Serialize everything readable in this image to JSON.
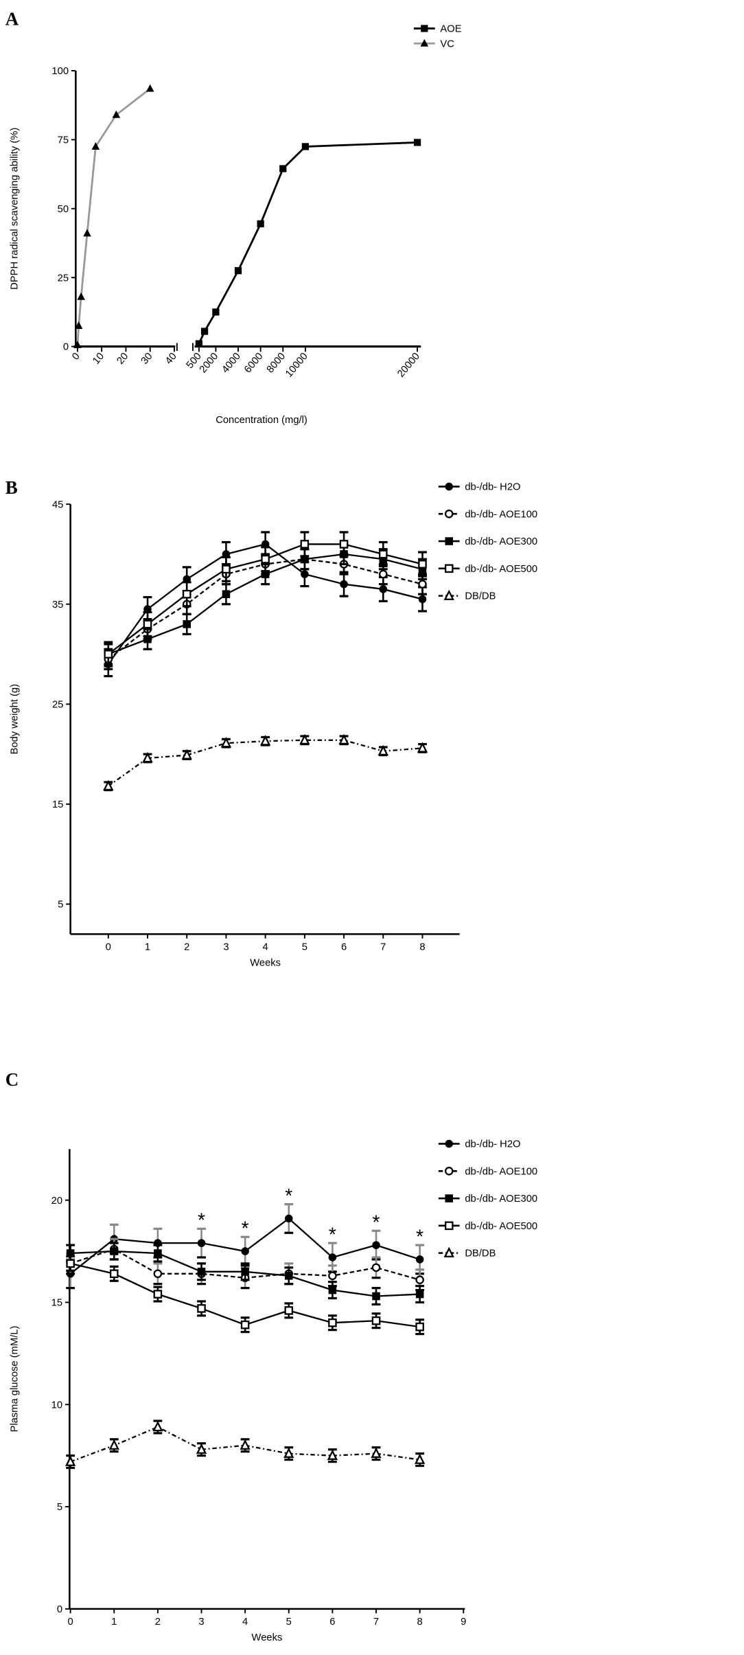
{
  "chart_data": [
    {
      "panel_label": "A",
      "type": "line",
      "xlabel": "Concentration (mg/l)",
      "ylabel": "DPPH radical scavenging ability (%)",
      "ylim": [
        0,
        100
      ],
      "yticks": [
        0,
        25,
        50,
        75,
        100
      ],
      "x_axis_broken": true,
      "xticks_left": [
        0,
        10,
        20,
        30,
        40
      ],
      "xticks_right": [
        500,
        2000,
        4000,
        6000,
        8000,
        10000,
        20000
      ],
      "legend_position": "top-right",
      "series": [
        {
          "name": "AOE",
          "color": "#000000",
          "marker": "square-filled",
          "segment": "right",
          "x": [
            500,
            1000,
            2000,
            4000,
            6000,
            8000,
            10000,
            20000
          ],
          "y": [
            1,
            5.5,
            12.5,
            27.5,
            44.5,
            64.5,
            72.5,
            74
          ]
        },
        {
          "name": "VC",
          "color": "#999999",
          "marker": "triangle-filled",
          "segment": "left",
          "x": [
            0,
            0.5,
            1.5,
            4,
            7.5,
            16,
            30
          ],
          "y": [
            0.5,
            7.5,
            18,
            41,
            72.5,
            84,
            93.5
          ]
        }
      ]
    },
    {
      "panel_label": "B",
      "type": "line",
      "xlabel": "Weeks",
      "ylabel": "Body weight (g)",
      "ylim": [
        2,
        45
      ],
      "xlim": [
        -1,
        9
      ],
      "yticks": [
        5,
        15,
        25,
        35,
        45
      ],
      "xticks": [
        0,
        1,
        2,
        3,
        4,
        5,
        6,
        7,
        8
      ],
      "legend_position": "top-right",
      "series": [
        {
          "name": "db-/db- H2O",
          "marker": "circle-filled",
          "dash": "solid",
          "x": [
            0,
            1,
            2,
            3,
            4,
            5,
            6,
            7,
            8
          ],
          "y": [
            29,
            34.5,
            37.5,
            40,
            41,
            38,
            37,
            36.5,
            35.5
          ],
          "err": 1.2
        },
        {
          "name": "db-/db- AOE100",
          "marker": "circle-open",
          "dash": "dashed",
          "x": [
            0,
            1,
            2,
            3,
            4,
            5,
            6,
            7,
            8
          ],
          "y": [
            29.5,
            32.5,
            35,
            38,
            39,
            39.5,
            39,
            38,
            37
          ],
          "err": 1.0
        },
        {
          "name": "db-/db- AOE300",
          "marker": "square-filled",
          "dash": "solid",
          "x": [
            0,
            1,
            2,
            3,
            4,
            5,
            6,
            7,
            8
          ],
          "y": [
            30,
            31.5,
            33,
            36,
            38,
            39.5,
            40,
            39.5,
            38.5
          ],
          "err": 1.0
        },
        {
          "name": "db-/db- AOE500",
          "marker": "square-open",
          "dash": "solid",
          "x": [
            0,
            1,
            2,
            3,
            4,
            5,
            6,
            7,
            8
          ],
          "y": [
            30,
            33,
            36,
            38.5,
            39.5,
            41,
            41,
            40,
            39
          ],
          "err": 1.2
        },
        {
          "name": "DB/DB",
          "marker": "triangle-open",
          "dash": "dashdot",
          "x": [
            0,
            1,
            2,
            3,
            4,
            5,
            6,
            7,
            8
          ],
          "y": [
            16.8,
            19.6,
            19.9,
            21.1,
            21.3,
            21.4,
            21.4,
            20.3,
            20.6
          ],
          "err": 0.4
        }
      ]
    },
    {
      "panel_label": "C",
      "type": "line",
      "xlabel": "Weeks",
      "ylabel": "Plasma glucose (mM/L)",
      "ylim": [
        0,
        22.5
      ],
      "xlim": [
        0,
        9
      ],
      "yticks": [
        0,
        5,
        10,
        15,
        20
      ],
      "xticks": [
        0,
        1,
        2,
        3,
        4,
        5,
        6,
        7,
        8,
        9
      ],
      "legend_position": "top-right",
      "significance_marker": "*",
      "significance_weeks": [
        3,
        4,
        5,
        6,
        7,
        8
      ],
      "series": [
        {
          "name": "db-/db- H2O",
          "marker": "circle-filled",
          "dash": "solid",
          "errColor": "#888888",
          "x": [
            0,
            1,
            2,
            3,
            4,
            5,
            6,
            7,
            8
          ],
          "y": [
            16.4,
            18.1,
            17.9,
            17.9,
            17.5,
            19.1,
            17.2,
            17.8,
            17.1
          ],
          "err": 0.7
        },
        {
          "name": "db-/db- AOE100",
          "marker": "circle-open",
          "dash": "dashed",
          "errColor": "#888888",
          "x": [
            0,
            1,
            2,
            3,
            4,
            5,
            6,
            7,
            8
          ],
          "y": [
            16.9,
            17.6,
            16.4,
            16.4,
            16.2,
            16.4,
            16.3,
            16.7,
            16.1
          ],
          "err": 0.5
        },
        {
          "name": "db-/db- AOE300",
          "marker": "square-filled",
          "dash": "solid",
          "x": [
            0,
            1,
            2,
            3,
            4,
            5,
            6,
            7,
            8
          ],
          "y": [
            17.4,
            17.5,
            17.4,
            16.5,
            16.5,
            16.3,
            15.6,
            15.3,
            15.4
          ],
          "err": 0.4
        },
        {
          "name": "db-/db- AOE500",
          "marker": "square-open",
          "dash": "solid",
          "x": [
            0,
            1,
            2,
            3,
            4,
            5,
            6,
            7,
            8
          ],
          "y": [
            16.9,
            16.4,
            15.4,
            14.7,
            13.9,
            14.6,
            14.0,
            14.1,
            13.8
          ],
          "err": 0.35
        },
        {
          "name": "DB/DB",
          "marker": "triangle-open",
          "dash": "dashdot",
          "x": [
            0,
            1,
            2,
            3,
            4,
            5,
            6,
            7,
            8
          ],
          "y": [
            7.2,
            8.0,
            8.9,
            7.8,
            8.0,
            7.6,
            7.5,
            7.6,
            7.3
          ],
          "err": 0.3
        }
      ]
    }
  ]
}
